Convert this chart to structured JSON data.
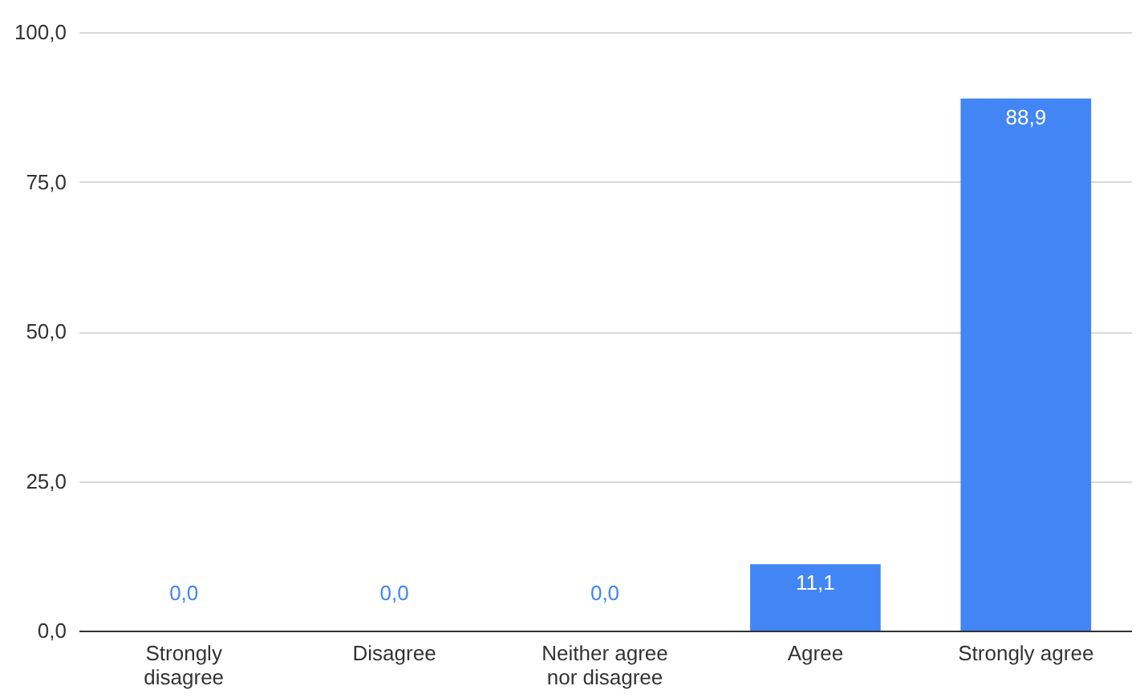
{
  "chart_data": {
    "type": "bar",
    "categories": [
      "Strongly disagree",
      "Disagree",
      "Neither agree nor disagree",
      "Agree",
      "Strongly agree"
    ],
    "values": [
      0,
      0,
      0,
      11.1,
      88.9
    ],
    "value_labels": [
      "0,0",
      "0,0",
      "0,0",
      "11,1",
      "88,9"
    ],
    "color": "#4285f4",
    "ylim": [
      0,
      100
    ],
    "yticks": [
      {
        "value": 0,
        "label": "0,0"
      },
      {
        "value": 25,
        "label": "25,0"
      },
      {
        "value": 50,
        "label": "50,0"
      },
      {
        "value": 75,
        "label": "75,0"
      },
      {
        "value": 100,
        "label": "100,0"
      }
    ],
    "grid": "y"
  }
}
